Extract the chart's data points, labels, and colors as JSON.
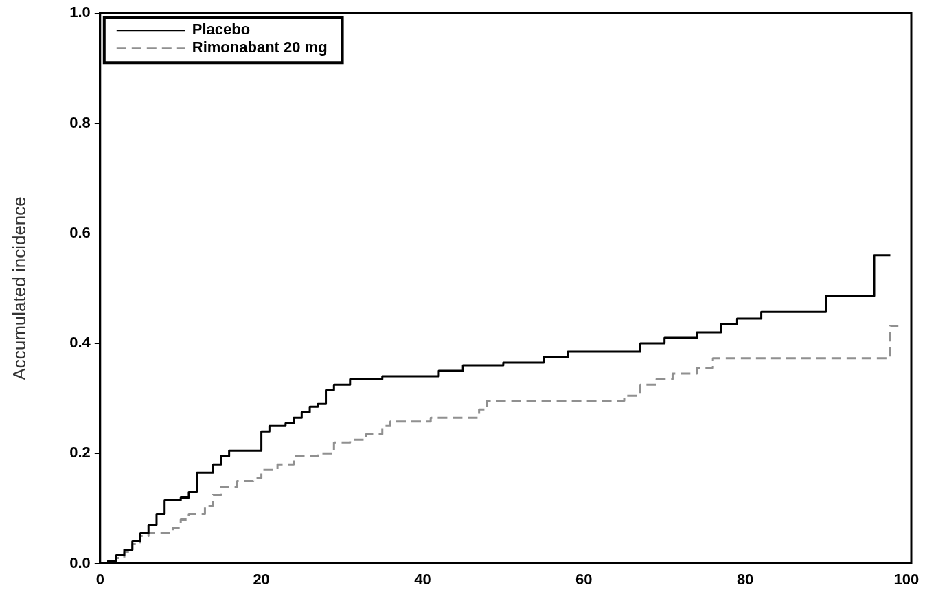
{
  "chart_data": {
    "type": "step",
    "ylabel": "Accumulated incidence",
    "xlim": [
      0,
      100.6
    ],
    "ylim": [
      0,
      1
    ],
    "xticks": [
      0,
      20,
      40,
      60,
      80,
      100
    ],
    "yticks": [
      {
        "value": 0,
        "label": "0.0"
      },
      {
        "value": 0.2,
        "label": "0.2"
      },
      {
        "value": 0.4,
        "label": "0.4"
      },
      {
        "value": 0.6,
        "label": "0.6"
      },
      {
        "value": 0.8,
        "label": "0.8"
      },
      {
        "value": 1,
        "label": "1.0"
      }
    ],
    "grid": false,
    "legend": "top left",
    "marker": "none",
    "series": [
      {
        "name": "Placebo",
        "color": "#000000",
        "line_style": "solid",
        "x": [
          0,
          1,
          2,
          3,
          4,
          5,
          6,
          7,
          8,
          10,
          11,
          12,
          14,
          15,
          16,
          20,
          21,
          23,
          24,
          25,
          26,
          27,
          28,
          29,
          31,
          35,
          42,
          45,
          50,
          55,
          58,
          67,
          70,
          74,
          77,
          79,
          82,
          90,
          96,
          98
        ],
        "values": [
          0,
          0.005,
          0.015,
          0.025,
          0.04,
          0.055,
          0.07,
          0.09,
          0.115,
          0.12,
          0.13,
          0.165,
          0.18,
          0.195,
          0.205,
          0.24,
          0.25,
          0.255,
          0.265,
          0.275,
          0.285,
          0.29,
          0.315,
          0.325,
          0.335,
          0.34,
          0.35,
          0.36,
          0.365,
          0.375,
          0.385,
          0.4,
          0.41,
          0.42,
          0.435,
          0.445,
          0.457,
          0.486,
          0.56,
          0.56
        ]
      },
      {
        "name": "Rimonabant 20 mg",
        "color": "#909090",
        "line_style": "dashed",
        "x": [
          0,
          2,
          3,
          4,
          5,
          6,
          9,
          10,
          11,
          13,
          14,
          15,
          17,
          19,
          20,
          22,
          24,
          27,
          29,
          31,
          33,
          35,
          36,
          41,
          47,
          48,
          65,
          67,
          69,
          71,
          74,
          76,
          98,
          99
        ],
        "values": [
          0,
          0.01,
          0.02,
          0.035,
          0.05,
          0.055,
          0.065,
          0.08,
          0.09,
          0.105,
          0.125,
          0.14,
          0.15,
          0.155,
          0.17,
          0.18,
          0.195,
          0.2,
          0.22,
          0.225,
          0.235,
          0.25,
          0.258,
          0.265,
          0.28,
          0.296,
          0.305,
          0.325,
          0.335,
          0.345,
          0.355,
          0.373,
          0.432,
          0.432
        ]
      }
    ]
  }
}
